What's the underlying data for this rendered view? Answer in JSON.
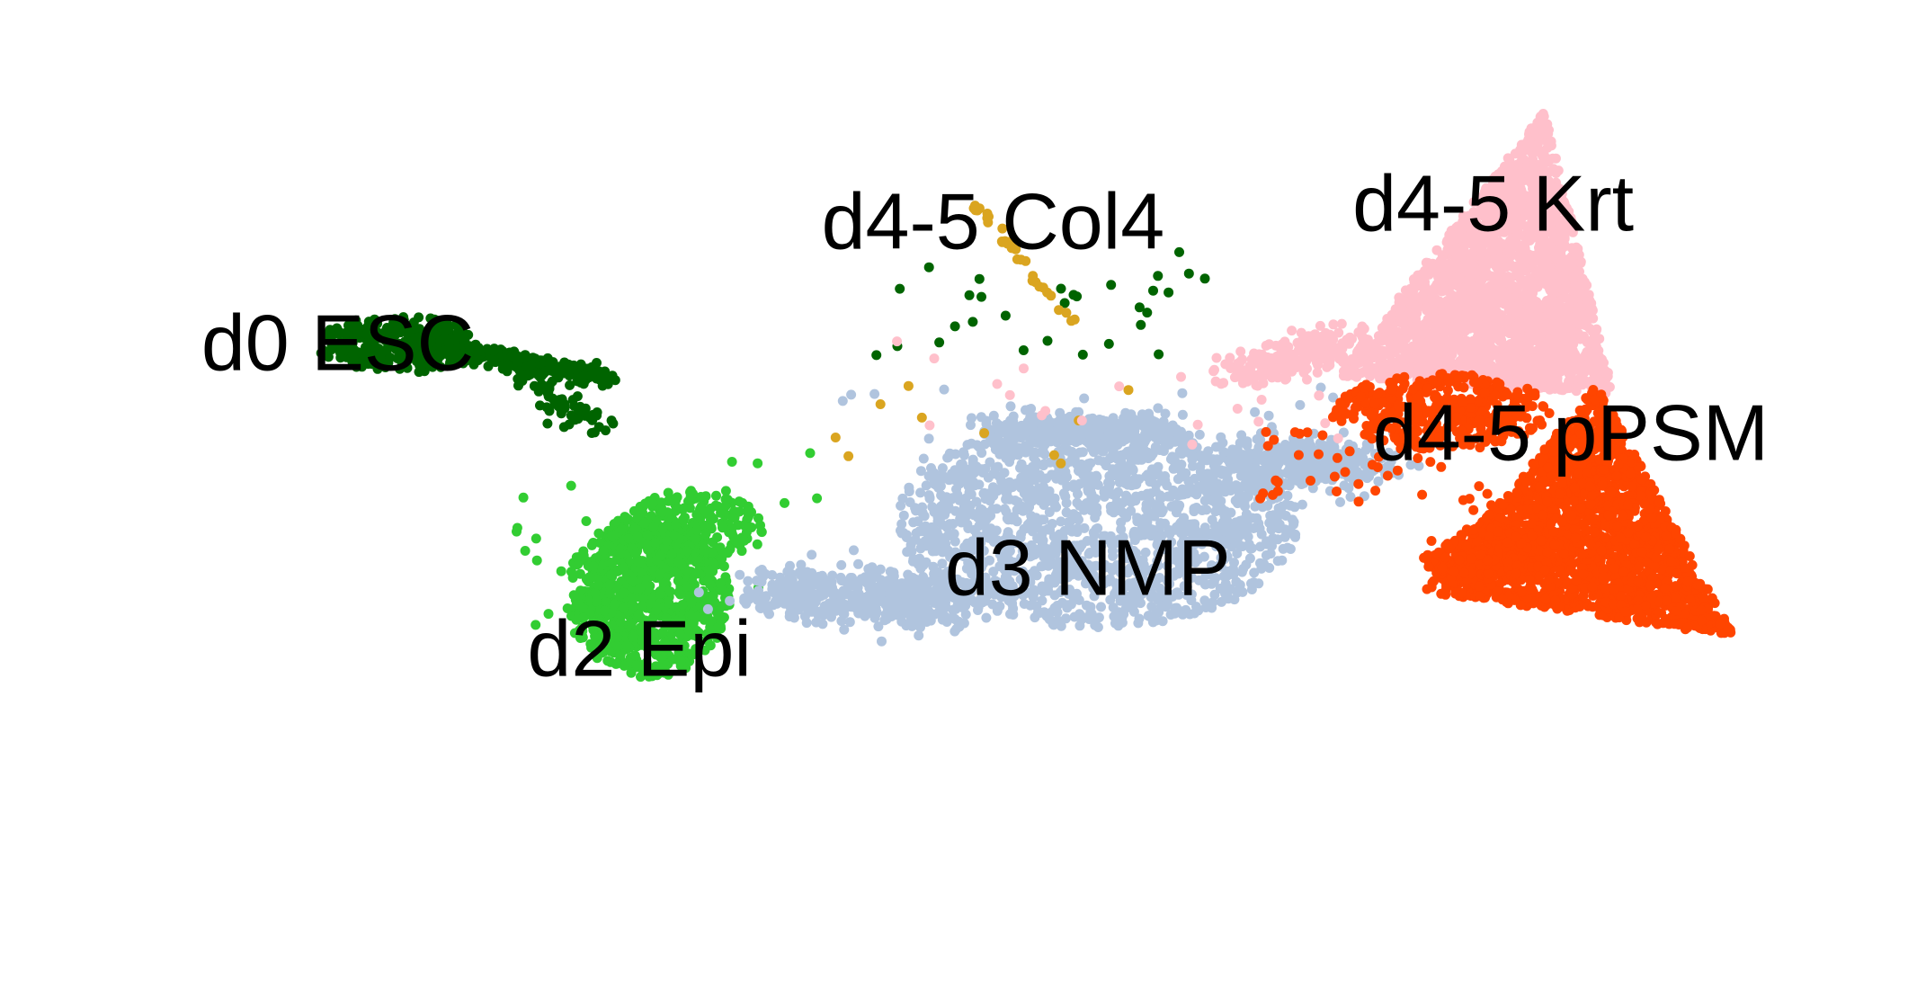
{
  "chart_data": {
    "type": "scatter",
    "title": "",
    "xlabel": "",
    "ylabel": "",
    "axes_visible": false,
    "grid": false,
    "legend": "none",
    "xlim": [
      0,
      100
    ],
    "ylim": [
      0,
      100
    ],
    "clusters": [
      {
        "label": "d0 ESC",
        "color": "#006400",
        "label_pos": [
          14.0,
          65.0
        ],
        "regions": [
          {
            "type": "ellipse",
            "center": [
              17.5,
              65.5
            ],
            "radii": [
              4.5,
              3.0
            ],
            "n": 260
          },
          {
            "type": "segment",
            "from": [
              21.0,
              65.0
            ],
            "to": [
              30.0,
              61.5
            ],
            "spread": 1.1,
            "n": 220
          },
          {
            "type": "segment",
            "from": [
              24.0,
              63.0
            ],
            "to": [
              29.0,
              56.0
            ],
            "spread": 1.2,
            "n": 70
          },
          {
            "type": "scatter",
            "center": [
              55.0,
              70.0
            ],
            "radii": [
              10.0,
              6.0
            ],
            "n": 30
          }
        ]
      },
      {
        "label": "d2 Epi",
        "color": "#32CD32",
        "label_pos": [
          31.5,
          31.0
        ],
        "regions": [
          {
            "type": "ellipse",
            "center": [
              32.0,
              37.5
            ],
            "radii": [
              4.5,
              8.5
            ],
            "n": 900
          },
          {
            "type": "ellipse",
            "center": [
              34.5,
              45.0
            ],
            "radii": [
              4.0,
              4.0
            ],
            "n": 220
          },
          {
            "type": "scatter",
            "center": [
              33.0,
              44.0
            ],
            "radii": [
              9.0,
              10.0
            ],
            "n": 30
          }
        ]
      },
      {
        "label": "d3 NMP",
        "color": "#B0C4DE",
        "label_pos": [
          57.5,
          40.0
        ],
        "regions": [
          {
            "type": "ellipse",
            "center": [
              58.0,
              45.5
            ],
            "radii": [
              11.0,
              11.0
            ],
            "n": 1500
          },
          {
            "type": "segment",
            "from": [
              39.0,
              38.0
            ],
            "to": [
              50.0,
              37.0
            ],
            "spread": 3.0,
            "n": 520
          },
          {
            "type": "segment",
            "from": [
              66.0,
              52.0
            ],
            "to": [
              74.0,
              52.5
            ],
            "spread": 2.8,
            "n": 350
          },
          {
            "type": "segment",
            "from": [
              52.0,
              56.0
            ],
            "to": [
              62.0,
              56.0
            ],
            "spread": 1.8,
            "n": 280
          },
          {
            "type": "scatter",
            "center": [
              58.0,
              53.0
            ],
            "radii": [
              15.0,
              8.0
            ],
            "n": 50
          }
        ]
      },
      {
        "label": "d4-5 Col4",
        "color": "#DAA520",
        "label_pos": [
          52.0,
          78.5
        ],
        "regions": [
          {
            "type": "segment",
            "from": [
              51.0,
              81.0
            ],
            "to": [
              56.5,
              68.0
            ],
            "spread": 0.35,
            "n": 32
          },
          {
            "type": "scatter",
            "center": [
              51.0,
              58.0
            ],
            "radii": [
              9.0,
              6.0
            ],
            "n": 10
          }
        ]
      },
      {
        "label": "d4-5 Krt",
        "color": "#FFC0CB",
        "label_pos": [
          81.0,
          80.5
        ],
        "regions": [
          {
            "type": "triangle",
            "points": [
              [
                84.0,
                91.5
              ],
              [
                72.0,
                62.0
              ],
              [
                88.0,
                60.0
              ]
            ],
            "n": 2200
          },
          {
            "type": "segment",
            "from": [
              66.0,
              62.0
            ],
            "to": [
              73.0,
              66.0
            ],
            "spread": 2.0,
            "n": 220
          },
          {
            "type": "scatter",
            "center": [
              60.0,
              60.0
            ],
            "radii": [
              14.0,
              6.0
            ],
            "n": 25
          }
        ]
      },
      {
        "label": "d4-5 pPSM",
        "color": "#FF4500",
        "label_pos": [
          85.5,
          55.0
        ],
        "regions": [
          {
            "type": "triangle",
            "points": [
              [
                87.0,
                61.0
              ],
              [
                95.0,
                33.0
              ],
              [
                77.0,
                38.0
              ]
            ],
            "n": 2000
          },
          {
            "type": "ellipse",
            "center": [
              78.0,
              58.0
            ],
            "radii": [
              6.0,
              4.0
            ],
            "n": 400
          },
          {
            "type": "ellipse",
            "center": [
              81.0,
              42.0
            ],
            "radii": [
              4.0,
              3.0
            ],
            "n": 200
          },
          {
            "type": "scatter",
            "center": [
              74.0,
              52.0
            ],
            "radii": [
              7.0,
              5.0
            ],
            "n": 50
          }
        ]
      }
    ]
  }
}
